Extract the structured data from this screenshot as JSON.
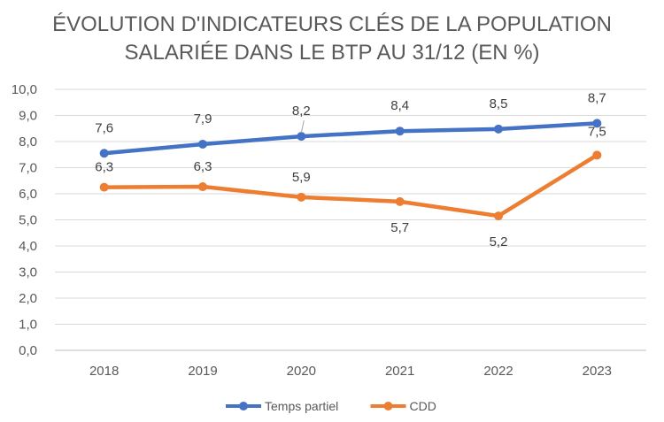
{
  "chart_data": {
    "type": "line",
    "title_line1": "ÉVOLUTION D'INDICATEURS CLÉS DE LA POPULATION",
    "title_line2": "SALARIÉE DANS LE BTP AU 31/12 (EN %)",
    "xlabel": "",
    "ylabel": "",
    "categories": [
      "2018",
      "2019",
      "2020",
      "2021",
      "2022",
      "2023"
    ],
    "y_ticks": [
      "0,0",
      "1,0",
      "2,0",
      "3,0",
      "4,0",
      "5,0",
      "6,0",
      "7,0",
      "8,0",
      "9,0",
      "10,0"
    ],
    "ylim": [
      0,
      10
    ],
    "grid": true,
    "legend_position": "bottom",
    "series": [
      {
        "name": "Temps partiel",
        "color": "#4472C4",
        "values": [
          7.55,
          7.9,
          8.2,
          8.4,
          8.48,
          8.7
        ],
        "labels": [
          "7,6",
          "7,9",
          "8,2",
          "8,4",
          "8,5",
          "8,7"
        ]
      },
      {
        "name": "CDD",
        "color": "#ED7D31",
        "values": [
          6.25,
          6.27,
          5.87,
          5.7,
          5.15,
          7.48
        ],
        "labels": [
          "6,3",
          "6,3",
          "5,9",
          "5,7",
          "5,2",
          "7,5"
        ]
      }
    ]
  }
}
